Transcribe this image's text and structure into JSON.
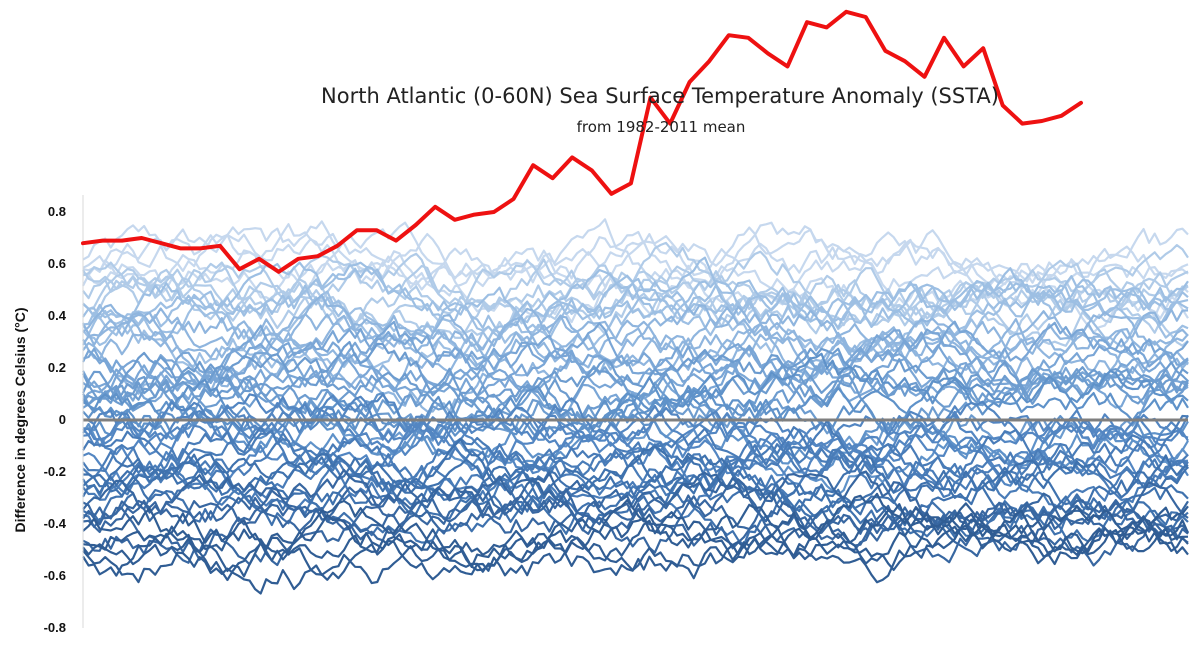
{
  "chart_data": {
    "type": "line",
    "title": "North Atlantic (0-60N) Sea Surface Temperature Anomaly (SSTA)",
    "subtitle": "from 1982-2011 mean",
    "xlabel": "",
    "ylabel": "Difference in degrees Celsius (°C)",
    "ylim": [
      -0.8,
      0.8
    ],
    "yticks": [
      0.8,
      0.6,
      0.4,
      0.2,
      0,
      -0.2,
      -0.4,
      -0.6,
      -0.8
    ],
    "ytick_labels": [
      "0.8",
      "0.6",
      "0.4",
      "0.2",
      "0",
      "-0.2",
      "-0.4",
      "-0.6",
      "-0.8"
    ],
    "zero_line": true,
    "grid": false,
    "observed_series": {
      "color": "#ee1111",
      "values": [
        0.68,
        0.69,
        0.69,
        0.7,
        0.68,
        0.66,
        0.66,
        0.67,
        0.58,
        0.62,
        0.57,
        0.62,
        0.63,
        0.67,
        0.73,
        0.73,
        0.69,
        0.75,
        0.82,
        0.77,
        0.79,
        0.8,
        0.85,
        0.98,
        0.93,
        1.01,
        0.96,
        0.87,
        0.91,
        1.24,
        1.14,
        1.3,
        1.38,
        1.48,
        1.47,
        1.41,
        1.36,
        1.53,
        1.51,
        1.57,
        1.55,
        1.42,
        1.38,
        1.32,
        1.47,
        1.36,
        1.43,
        1.21,
        1.14,
        1.15,
        1.17,
        1.22
      ]
    },
    "model_series": {
      "count": 60,
      "points_per_series": 200,
      "colors": [
        "#c6d8ee",
        "#b0cbe8",
        "#9dbfe3",
        "#8fb5de",
        "#7aa6d6",
        "#6d9ccf",
        "#5f92c9",
        "#5386c2",
        "#497cb8",
        "#3f72ae",
        "#3867a1",
        "#305d94"
      ]
    }
  }
}
